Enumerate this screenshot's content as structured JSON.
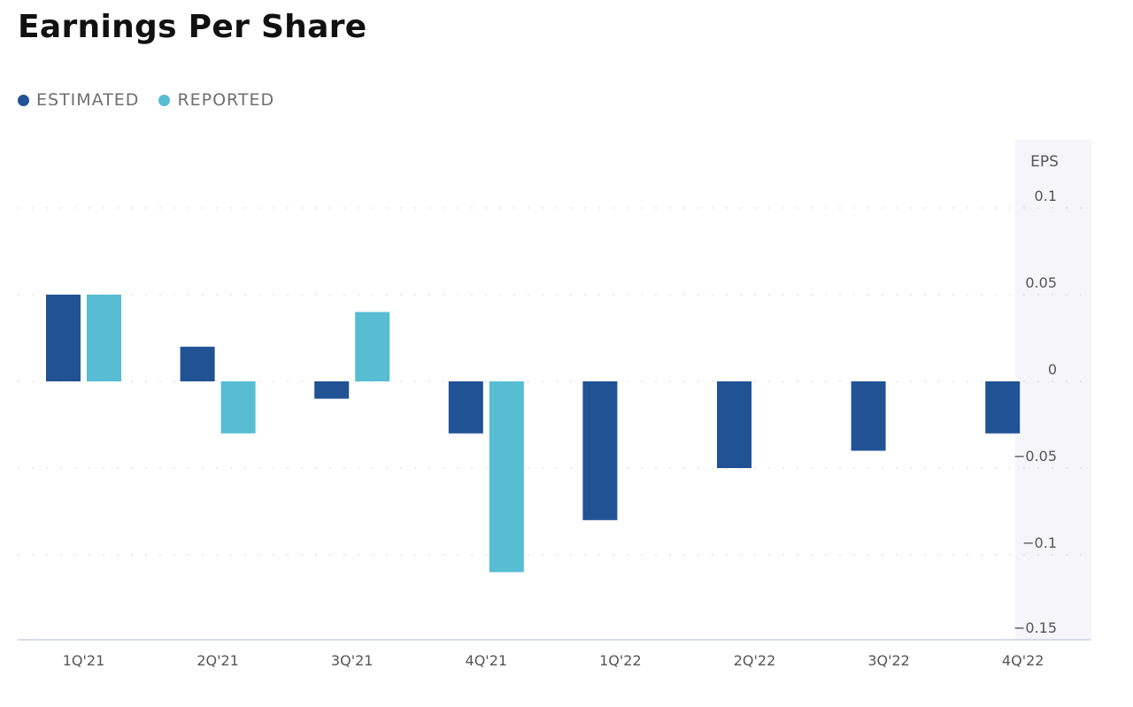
{
  "title": "Earnings Per Share",
  "legend": {
    "estimated_label": "ESTIMATED",
    "reported_label": "REPORTED"
  },
  "colors": {
    "estimated": "#215294",
    "reported": "#56bdd3",
    "axis_panel": "#f5f5fa",
    "grid": "#d4d4d4",
    "baseline": "#c9d3e4"
  },
  "chart_data": {
    "type": "bar",
    "title": "Earnings Per Share",
    "xlabel": "",
    "ylabel": "EPS",
    "categories": [
      "1Q'21",
      "2Q'21",
      "3Q'21",
      "4Q'21",
      "1Q'22",
      "2Q'22",
      "3Q'22",
      "4Q'22"
    ],
    "series": [
      {
        "name": "ESTIMATED",
        "values": [
          0.05,
          0.02,
          -0.01,
          -0.03,
          -0.08,
          -0.05,
          -0.04,
          -0.03
        ]
      },
      {
        "name": "REPORTED",
        "values": [
          0.05,
          -0.03,
          0.04,
          -0.11,
          null,
          null,
          null,
          null
        ]
      }
    ],
    "y_ticks": [
      0.1,
      0.05,
      0,
      -0.05,
      -0.1,
      -0.15
    ],
    "y_tick_labels": [
      "0.1",
      "0.05",
      "0",
      "−0.05",
      "−0.1",
      "−0.15"
    ],
    "ylim": [
      -0.15,
      0.11
    ],
    "grid": true,
    "legend_position": "top-left",
    "y_axis_position": "right"
  }
}
